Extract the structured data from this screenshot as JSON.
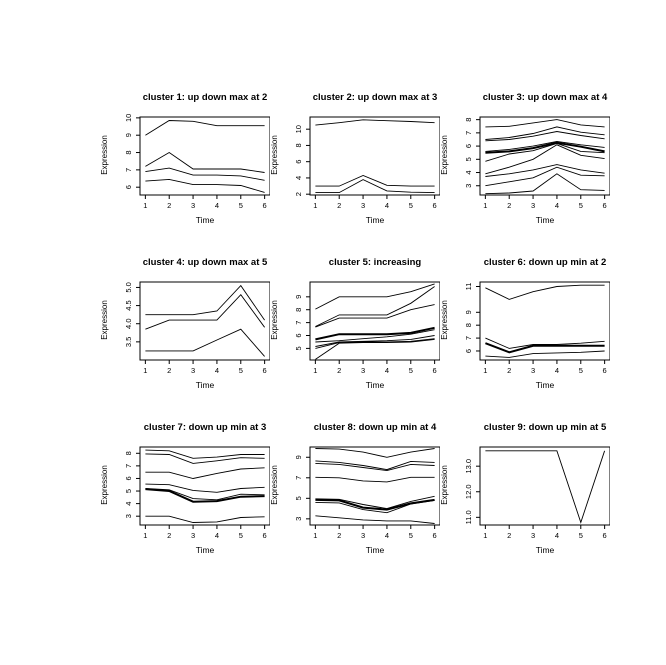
{
  "figure": {
    "background_color": "#ffffff",
    "line_color": "#000000",
    "layout": {
      "rows": 3,
      "cols": 3,
      "grid": false,
      "legend": "none"
    }
  },
  "chart_data": [
    {
      "type": "line",
      "title": "cluster 1: up down max at 2",
      "xlabel": "Time",
      "ylabel": "Expression",
      "x": [
        1,
        2,
        3,
        4,
        5,
        6
      ],
      "xtick_labels": [
        "1",
        "2",
        "3",
        "4",
        "5",
        "6"
      ],
      "ylim": [
        5.55,
        10.05
      ],
      "yticks": [
        6,
        7,
        8,
        9,
        10
      ],
      "ytick_labels": [
        "6",
        "7",
        "8",
        "9",
        "10"
      ],
      "series": [
        {
          "values": [
            9.0,
            9.85,
            9.8,
            9.55,
            9.55,
            9.55
          ]
        },
        {
          "values": [
            7.2,
            8.0,
            7.05,
            7.05,
            7.05,
            6.85
          ]
        },
        {
          "values": [
            6.9,
            7.1,
            6.7,
            6.7,
            6.65,
            6.4
          ]
        },
        {
          "values": [
            6.35,
            6.45,
            6.15,
            6.15,
            6.1,
            5.7
          ]
        }
      ]
    },
    {
      "type": "line",
      "title": "cluster 2: up down max at 3",
      "xlabel": "Time",
      "ylabel": "Expression",
      "x": [
        1,
        2,
        3,
        4,
        5,
        6
      ],
      "xtick_labels": [
        "1",
        "2",
        "3",
        "4",
        "5",
        "6"
      ],
      "ylim": [
        1.9,
        11.5
      ],
      "yticks": [
        2,
        4,
        6,
        8,
        10
      ],
      "ytick_labels": [
        "2",
        "4",
        "6",
        "8",
        "10"
      ],
      "series": [
        {
          "values": [
            10.5,
            10.8,
            11.15,
            11.05,
            10.95,
            10.8
          ]
        },
        {
          "values": [
            3.0,
            3.0,
            4.3,
            3.1,
            3.0,
            3.0
          ]
        },
        {
          "values": [
            2.2,
            2.2,
            3.8,
            2.4,
            2.25,
            2.2
          ]
        }
      ]
    },
    {
      "type": "line",
      "title": "cluster 3: up down max at 4",
      "xlabel": "Time",
      "ylabel": "Expression",
      "x": [
        1,
        2,
        3,
        4,
        5,
        6
      ],
      "xtick_labels": [
        "1",
        "2",
        "3",
        "4",
        "5",
        "6"
      ],
      "ylim": [
        2.3,
        8.2
      ],
      "yticks": [
        3,
        4,
        5,
        6,
        7,
        8
      ],
      "ytick_labels": [
        "3",
        "4",
        "5",
        "6",
        "7",
        "8"
      ],
      "series": [
        {
          "values": [
            7.45,
            7.5,
            7.75,
            8.0,
            7.6,
            7.45
          ]
        },
        {
          "values": [
            6.5,
            6.65,
            6.95,
            7.45,
            7.05,
            6.85
          ]
        },
        {
          "values": [
            6.4,
            6.5,
            6.75,
            7.1,
            6.8,
            6.55
          ]
        },
        {
          "values": [
            5.6,
            5.75,
            6.0,
            6.35,
            6.1,
            5.9
          ]
        },
        {
          "values": [
            5.5,
            5.6,
            5.85,
            6.25,
            5.95,
            5.6
          ],
          "bold": true
        },
        {
          "values": [
            4.85,
            5.4,
            5.65,
            6.2,
            5.6,
            5.5
          ]
        },
        {
          "values": [
            3.9,
            4.4,
            5.0,
            6.1,
            5.3,
            5.05
          ]
        },
        {
          "values": [
            3.7,
            3.9,
            4.2,
            4.6,
            4.2,
            3.95
          ]
        },
        {
          "values": [
            3.0,
            3.3,
            3.6,
            4.4,
            3.8,
            3.75
          ]
        },
        {
          "values": [
            2.4,
            2.45,
            2.6,
            3.9,
            2.7,
            2.65
          ]
        }
      ]
    },
    {
      "type": "line",
      "title": "cluster 4: up down max at 5",
      "xlabel": "Time",
      "ylabel": "Expression",
      "x": [
        1,
        2,
        3,
        4,
        5,
        6
      ],
      "xtick_labels": [
        "1",
        "2",
        "3",
        "4",
        "5",
        "6"
      ],
      "ylim": [
        3.0,
        5.15
      ],
      "yticks": [
        3.5,
        4.0,
        4.5,
        5.0
      ],
      "ytick_labels": [
        "3.5",
        "4.0",
        "4.5",
        "5.0"
      ],
      "series": [
        {
          "values": [
            4.25,
            4.25,
            4.25,
            4.35,
            5.05,
            4.1
          ]
        },
        {
          "values": [
            3.85,
            4.1,
            4.1,
            4.1,
            4.8,
            3.9
          ]
        },
        {
          "values": [
            3.25,
            3.25,
            3.25,
            3.55,
            3.85,
            3.1
          ]
        }
      ]
    },
    {
      "type": "line",
      "title": "cluster 5: increasing",
      "xlabel": "Time",
      "ylabel": "Expression",
      "x": [
        1,
        2,
        3,
        4,
        5,
        6
      ],
      "xtick_labels": [
        "1",
        "2",
        "3",
        "4",
        "5",
        "6"
      ],
      "ylim": [
        4.1,
        10.15
      ],
      "yticks": [
        5,
        6,
        7,
        8,
        9
      ],
      "ytick_labels": [
        "5",
        "6",
        "7",
        "8",
        "9"
      ],
      "series": [
        {
          "values": [
            8.05,
            9.0,
            9.0,
            9.0,
            9.4,
            10.0
          ]
        },
        {
          "values": [
            6.7,
            7.6,
            7.6,
            7.6,
            8.5,
            9.8
          ]
        },
        {
          "values": [
            6.65,
            7.35,
            7.35,
            7.35,
            8.0,
            8.4
          ]
        },
        {
          "values": [
            5.7,
            6.1,
            6.1,
            6.1,
            6.2,
            6.6
          ],
          "bold": true
        },
        {
          "values": [
            5.5,
            5.6,
            5.75,
            5.9,
            6.1,
            6.45
          ]
        },
        {
          "values": [
            5.15,
            5.5,
            5.55,
            5.6,
            5.7,
            6.0
          ]
        },
        {
          "values": [
            5.0,
            5.45,
            5.5,
            5.5,
            5.55,
            5.75
          ]
        },
        {
          "values": [
            4.15,
            5.4,
            5.45,
            5.45,
            5.5,
            5.7
          ]
        }
      ]
    },
    {
      "type": "line",
      "title": "cluster 6: down up min at 2",
      "xlabel": "Time",
      "ylabel": "Expression",
      "x": [
        1,
        2,
        3,
        4,
        5,
        6
      ],
      "xtick_labels": [
        "1",
        "2",
        "3",
        "4",
        "5",
        "6"
      ],
      "ylim": [
        5.3,
        11.35
      ],
      "yticks": [
        6,
        7,
        8,
        9,
        11
      ],
      "ytick_labels": [
        "6",
        "7",
        "8",
        "9",
        "11"
      ],
      "series": [
        {
          "values": [
            10.9,
            10.0,
            10.6,
            11.0,
            11.1,
            11.1
          ]
        },
        {
          "values": [
            7.0,
            6.2,
            6.5,
            6.5,
            6.6,
            6.75
          ]
        },
        {
          "values": [
            6.6,
            5.9,
            6.4,
            6.4,
            6.4,
            6.4
          ],
          "bold": true
        },
        {
          "values": [
            5.6,
            5.5,
            5.8,
            5.85,
            5.9,
            6.0
          ]
        }
      ]
    },
    {
      "type": "line",
      "title": "cluster 7: down up min at 3",
      "xlabel": "Time",
      "ylabel": "Expression",
      "x": [
        1,
        2,
        3,
        4,
        5,
        6
      ],
      "xtick_labels": [
        "1",
        "2",
        "3",
        "4",
        "5",
        "6"
      ],
      "ylim": [
        2.3,
        8.5
      ],
      "yticks": [
        3,
        4,
        5,
        6,
        7,
        8
      ],
      "ytick_labels": [
        "3",
        "4",
        "5",
        "6",
        "7",
        "8"
      ],
      "series": [
        {
          "values": [
            8.25,
            8.2,
            7.6,
            7.7,
            7.9,
            7.9
          ]
        },
        {
          "values": [
            7.95,
            7.9,
            7.2,
            7.4,
            7.65,
            7.6
          ]
        },
        {
          "values": [
            6.5,
            6.5,
            6.0,
            6.4,
            6.75,
            6.85
          ]
        },
        {
          "values": [
            5.55,
            5.5,
            5.05,
            4.9,
            5.2,
            5.3
          ]
        },
        {
          "values": [
            5.2,
            5.1,
            4.4,
            4.3,
            4.75,
            4.7
          ]
        },
        {
          "values": [
            5.15,
            5.0,
            4.15,
            4.2,
            4.55,
            4.6
          ],
          "bold": true
        },
        {
          "values": [
            3.0,
            3.0,
            2.5,
            2.55,
            2.9,
            2.95
          ]
        }
      ]
    },
    {
      "type": "line",
      "title": "cluster 8: down up min at 4",
      "xlabel": "Time",
      "ylabel": "Expression",
      "x": [
        1,
        2,
        3,
        4,
        5,
        6
      ],
      "xtick_labels": [
        "1",
        "2",
        "3",
        "4",
        "5",
        "6"
      ],
      "ylim": [
        2.4,
        10.0
      ],
      "yticks": [
        3,
        5,
        7,
        9
      ],
      "ytick_labels": [
        "3",
        "5",
        "7",
        "9"
      ],
      "series": [
        {
          "values": [
            9.85,
            9.8,
            9.5,
            9.0,
            9.5,
            9.85
          ]
        },
        {
          "values": [
            8.65,
            8.5,
            8.2,
            7.8,
            8.6,
            8.5
          ]
        },
        {
          "values": [
            8.4,
            8.3,
            8.0,
            7.7,
            8.3,
            8.2
          ]
        },
        {
          "values": [
            7.05,
            7.0,
            6.7,
            6.6,
            7.05,
            7.05
          ]
        },
        {
          "values": [
            4.95,
            4.9,
            4.4,
            4.0,
            4.7,
            5.2
          ]
        },
        {
          "values": [
            4.85,
            4.8,
            4.1,
            3.9,
            4.5,
            4.85
          ],
          "bold": true
        },
        {
          "values": [
            4.6,
            4.55,
            3.9,
            3.6,
            4.45,
            4.8
          ]
        },
        {
          "values": [
            3.3,
            3.1,
            2.9,
            2.8,
            2.8,
            2.55
          ]
        }
      ]
    },
    {
      "type": "line",
      "title": "cluster 9: down up min at 5",
      "xlabel": "Time",
      "ylabel": "Expression",
      "x": [
        1,
        2,
        3,
        4,
        5,
        6
      ],
      "xtick_labels": [
        "1",
        "2",
        "3",
        "4",
        "5",
        "6"
      ],
      "ylim": [
        10.7,
        13.75
      ],
      "yticks": [
        11,
        12,
        13
      ],
      "ytick_labels": [
        "11.0",
        "12.0",
        "13.0"
      ],
      "series": [
        {
          "values": [
            13.6,
            13.6,
            13.6,
            13.6,
            10.8,
            13.6
          ]
        }
      ]
    }
  ]
}
